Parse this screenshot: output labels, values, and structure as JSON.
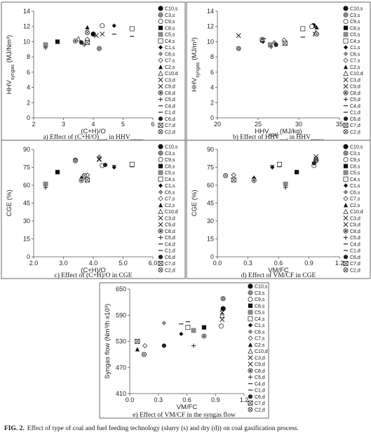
{
  "figure_caption": {
    "label": "FIG. 2.",
    "text": "Effect of type of coal and fuel feeding technology (slurry (s) and dry (d)) on coal gasification process."
  },
  "legend_entries": [
    "C10,s",
    "C3,s",
    "C9,s",
    "C8,s",
    "C5,s",
    "C4,s",
    "C1,s",
    "C6,s",
    "C7,s",
    "C2,s",
    "C10,d",
    "C3,d",
    "C9,d",
    "C8,d",
    "C5,d",
    "C4,d",
    "C1,d",
    "C6,d",
    "C7,d",
    "C2,d"
  ],
  "marker_styles": {
    "C10,s": "filled-circle",
    "C3,s": "grey-circle",
    "C9,s": "open-circle",
    "C8,s": "filled-square",
    "C5,s": "grey-square",
    "C4,s": "open-square",
    "C1,s": "filled-diamond",
    "C6,s": "grey-diamond",
    "C7,s": "open-diamond",
    "C2,s": "filled-triangle",
    "C10,d": "open-triangle",
    "C3,d": "x-mark",
    "C9,d": "x-mark",
    "C8,d": "circle-star",
    "C5,d": "plus",
    "C4,d": "dash",
    "C1,d": "dash",
    "C6,d": "filled-circle-small",
    "C7,d": "square-x",
    "C2,d": "circle-x"
  },
  "chart_data": [
    {
      "id": "a",
      "type": "scatter",
      "caption_html_parts": [
        "a) Effect of (C+H/O)",
        "coal",
        " in HHV",
        "syngas"
      ],
      "xlabel": "(C+H)/O",
      "ylabel_main": "HHV",
      "ylabel_sub": "syngas",
      "ylabel_tail": " (MJ/Nm³)",
      "xlim": [
        2,
        6
      ],
      "ylim": [
        0,
        14
      ],
      "xticks": [
        2,
        3,
        4,
        5,
        6
      ],
      "yticks": [
        0,
        2,
        4,
        6,
        8,
        10,
        12,
        14
      ],
      "xtick_labels": [
        "2",
        "3",
        "4",
        "5",
        "6"
      ],
      "ytick_labels": [
        "0",
        "2",
        "4",
        "6",
        "8",
        "10",
        "12",
        "14"
      ],
      "points": [
        {
          "s": "C10,s",
          "x": 4.0,
          "y": 11.0
        },
        {
          "s": "C3,s",
          "x": 4.2,
          "y": 9.1
        },
        {
          "s": "C9,s",
          "x": 4.3,
          "y": 12.1
        },
        {
          "s": "C8,s",
          "x": 2.8,
          "y": 10.0
        },
        {
          "s": "C5,s",
          "x": 2.4,
          "y": 9.6
        },
        {
          "s": "C4,s",
          "x": 5.3,
          "y": 11.7
        },
        {
          "s": "C1,s",
          "x": 4.7,
          "y": 12.1
        },
        {
          "s": "C6,s",
          "x": 3.7,
          "y": 9.6
        },
        {
          "s": "C7,s",
          "x": 3.8,
          "y": 10.3
        },
        {
          "s": "C2,s",
          "x": 3.8,
          "y": 11.9
        },
        {
          "s": "C10,d",
          "x": 3.5,
          "y": 10.4
        },
        {
          "s": "C3,d",
          "x": 4.3,
          "y": 11.0
        },
        {
          "s": "C9,d",
          "x": 4.1,
          "y": 10.8
        },
        {
          "s": "C8,d",
          "x": 3.4,
          "y": 10.1
        },
        {
          "s": "C5,d",
          "x": 2.4,
          "y": 9.2
        },
        {
          "s": "C4,d",
          "x": 5.3,
          "y": 10.7
        },
        {
          "s": "C1,d",
          "x": 4.7,
          "y": 11.0
        },
        {
          "s": "C6,d",
          "x": 3.6,
          "y": 9.9
        },
        {
          "s": "C7,d",
          "x": 3.8,
          "y": 9.9
        },
        {
          "s": "C2,d",
          "x": 3.8,
          "y": 11.2
        }
      ]
    },
    {
      "id": "b",
      "type": "scatter",
      "caption_html_parts": [
        "b) Effect of HHV",
        "coal",
        " in HHV",
        "syngas"
      ],
      "xlabel_main": "HHV",
      "xlabel_sub": "coal",
      "xlabel_tail": " (MJ/kg)",
      "ylabel_main": "HHV",
      "ylabel_sub": "syngas",
      "ylabel_tail": " (MJ/m³)",
      "xlim": [
        20,
        35
      ],
      "ylim": [
        0,
        14
      ],
      "xticks": [
        20,
        25,
        30,
        35
      ],
      "yticks": [
        0,
        2,
        4,
        6,
        8,
        10,
        12,
        14
      ],
      "xtick_labels": [
        "20",
        "25",
        "30",
        "35"
      ],
      "ytick_labels": [
        "0",
        "2",
        "4",
        "6",
        "8",
        "10",
        "12",
        "14"
      ],
      "points": [
        {
          "s": "C10,s",
          "x": 31.8,
          "y": 12.1
        },
        {
          "s": "C3,s",
          "x": 22.6,
          "y": 9.1
        },
        {
          "s": "C9,s",
          "x": 31.6,
          "y": 12.0
        },
        {
          "s": "C8,s",
          "x": 25.5,
          "y": 10.2
        },
        {
          "s": "C5,s",
          "x": 26.5,
          "y": 9.6
        },
        {
          "s": "C4,s",
          "x": 30.5,
          "y": 11.7
        },
        {
          "s": "C1,s",
          "x": 25.6,
          "y": 10.0
        },
        {
          "s": "C6,s",
          "x": 27.0,
          "y": 9.9
        },
        {
          "s": "C7,s",
          "x": 28.2,
          "y": 10.2
        },
        {
          "s": "C2,s",
          "x": 32.2,
          "y": 11.9
        },
        {
          "s": "C10,d",
          "x": 32.1,
          "y": 11.2
        },
        {
          "s": "C3,d",
          "x": 22.6,
          "y": 10.8
        },
        {
          "s": "C9,d",
          "x": 32.0,
          "y": 11.0
        },
        {
          "s": "C8,d",
          "x": 25.5,
          "y": 10.3
        },
        {
          "s": "C5,d",
          "x": 26.6,
          "y": 9.3
        },
        {
          "s": "C4,d",
          "x": 30.5,
          "y": 10.6
        },
        {
          "s": "C1,d",
          "x": 25.7,
          "y": 10.4
        },
        {
          "s": "C6,d",
          "x": 27.2,
          "y": 9.6
        },
        {
          "s": "C7,d",
          "x": 28.3,
          "y": 9.8
        },
        {
          "s": "C2,d",
          "x": 32.2,
          "y": 11.0
        }
      ]
    },
    {
      "id": "c",
      "type": "scatter",
      "caption": "c) Effect of (C+H)/O in CGE",
      "xlabel": "(C+H)/O",
      "ylabel": "CGE (%)",
      "xlim": [
        2,
        6
      ],
      "ylim": [
        0,
        90
      ],
      "xticks": [
        2,
        3,
        4,
        5,
        6
      ],
      "yticks": [
        0,
        15,
        30,
        45,
        60,
        75,
        90
      ],
      "xtick_labels": [
        "2.0",
        "3.0",
        "4.0",
        "5.0",
        "6.0"
      ],
      "ytick_labels": [
        "0",
        "15",
        "30",
        "45",
        "60",
        "75",
        "90"
      ],
      "points": [
        {
          "s": "C10,s",
          "x": 3.4,
          "y": 81.0
        },
        {
          "s": "C3,s",
          "x": 3.4,
          "y": 80.5
        },
        {
          "s": "C9,s",
          "x": 4.3,
          "y": 76.5
        },
        {
          "s": "C8,s",
          "x": 2.8,
          "y": 71.0
        },
        {
          "s": "C5,s",
          "x": 2.4,
          "y": 61.0
        },
        {
          "s": "C4,s",
          "x": 5.3,
          "y": 77.5
        },
        {
          "s": "C1,s",
          "x": 4.7,
          "y": 75.0
        },
        {
          "s": "C6,s",
          "x": 4.2,
          "y": 84.0
        },
        {
          "s": "C7,s",
          "x": 3.8,
          "y": 68.5
        },
        {
          "s": "C2,s",
          "x": 3.6,
          "y": 66.5
        },
        {
          "s": "C10,d",
          "x": 3.7,
          "y": 67.0
        },
        {
          "s": "C3,d",
          "x": 4.2,
          "y": 82.0
        },
        {
          "s": "C9,d",
          "x": 4.2,
          "y": 81.5
        },
        {
          "s": "C8,d",
          "x": 3.6,
          "y": 64.0
        },
        {
          "s": "C5,d",
          "x": 2.4,
          "y": 58.0
        },
        {
          "s": "C4,d",
          "x": 5.3,
          "y": 75.5
        },
        {
          "s": "C1,d",
          "x": 4.7,
          "y": 76.5
        },
        {
          "s": "C6,d",
          "x": 4.4,
          "y": 77.0
        },
        {
          "s": "C7,d",
          "x": 3.8,
          "y": 64.5
        },
        {
          "s": "C2,d",
          "x": 3.7,
          "y": 68.0
        }
      ]
    },
    {
      "id": "d",
      "type": "scatter",
      "caption": "d) Effect of VM/CF in CGE",
      "xlabel": "VM/FC",
      "ylabel": "CGE (%)",
      "xlim": [
        0,
        1.2
      ],
      "ylim": [
        0,
        90
      ],
      "xticks": [
        0,
        0.3,
        0.6,
        0.9,
        1.2
      ],
      "yticks": [
        0,
        15,
        30,
        45,
        60,
        75,
        90
      ],
      "xtick_labels": [
        "0.0",
        "0.3",
        "0.6",
        "0.9",
        "1.2"
      ],
      "ytick_labels": [
        "0",
        "15",
        "30",
        "45",
        "60",
        "75",
        "90"
      ],
      "points": [
        {
          "s": "C10,s",
          "x": 0.97,
          "y": 81.0
        },
        {
          "s": "C3,s",
          "x": 0.97,
          "y": 80.5
        },
        {
          "s": "C9,s",
          "x": 0.95,
          "y": 76.5
        },
        {
          "s": "C8,s",
          "x": 0.78,
          "y": 71.0
        },
        {
          "s": "C5,s",
          "x": 0.67,
          "y": 61.0
        },
        {
          "s": "C4,s",
          "x": 0.61,
          "y": 77.5
        },
        {
          "s": "C1,s",
          "x": 0.54,
          "y": 75.0
        },
        {
          "s": "C6,s",
          "x": 0.36,
          "y": 66.0
        },
        {
          "s": "C7,s",
          "x": 0.16,
          "y": 68.5
        },
        {
          "s": "C2,s",
          "x": 0.36,
          "y": 66.5
        },
        {
          "s": "C10,d",
          "x": 0.97,
          "y": 82.5
        },
        {
          "s": "C3,d",
          "x": 0.97,
          "y": 82.0
        },
        {
          "s": "C9,d",
          "x": 0.97,
          "y": 84.0
        },
        {
          "s": "C8,d",
          "x": 0.36,
          "y": 64.0
        },
        {
          "s": "C5,d",
          "x": 0.67,
          "y": 58.0
        },
        {
          "s": "C4,d",
          "x": 0.61,
          "y": 75.5
        },
        {
          "s": "C1,d",
          "x": 0.54,
          "y": 76.5
        },
        {
          "s": "C6,d",
          "x": 0.95,
          "y": 78.5
        },
        {
          "s": "C7,d",
          "x": 0.16,
          "y": 64.5
        },
        {
          "s": "C2,d",
          "x": 0.08,
          "y": 68.0
        }
      ]
    },
    {
      "id": "e",
      "type": "scatter",
      "caption": "e) Effect of VM/CF in the syngas flow",
      "xlabel": "VM/FC",
      "ylabel": "Syngas flow (Nm³/h x10³)",
      "xlim": [
        0,
        1.2
      ],
      "ylim": [
        410,
        650
      ],
      "xticks": [
        0,
        0.3,
        0.6,
        0.9,
        1.2
      ],
      "yticks": [
        410,
        470,
        530,
        590,
        650
      ],
      "xtick_labels": [
        "0.0",
        "0.3",
        "0.6",
        "0.9",
        "1.2"
      ],
      "ytick_labels": [
        "410",
        "470",
        "530",
        "590",
        "650"
      ],
      "points": [
        {
          "s": "C10,s",
          "x": 0.98,
          "y": 605
        },
        {
          "s": "C3,s",
          "x": 0.98,
          "y": 628
        },
        {
          "s": "C9,s",
          "x": 0.96,
          "y": 565
        },
        {
          "s": "C8,s",
          "x": 0.78,
          "y": 562
        },
        {
          "s": "C5,s",
          "x": 0.67,
          "y": 555
        },
        {
          "s": "C4,s",
          "x": 0.61,
          "y": 562
        },
        {
          "s": "C1,s",
          "x": 0.54,
          "y": 547
        },
        {
          "s": "C6,s",
          "x": 0.36,
          "y": 572
        },
        {
          "s": "C7,s",
          "x": 0.16,
          "y": 520
        },
        {
          "s": "C2,s",
          "x": 0.08,
          "y": 512
        },
        {
          "s": "C10,d",
          "x": 0.97,
          "y": 590
        },
        {
          "s": "C3,d",
          "x": 0.97,
          "y": 580
        },
        {
          "s": "C9,d",
          "x": 0.97,
          "y": 596
        },
        {
          "s": "C8,d",
          "x": 0.78,
          "y": 542
        },
        {
          "s": "C5,d",
          "x": 0.67,
          "y": 520
        },
        {
          "s": "C4,d",
          "x": 0.61,
          "y": 575
        },
        {
          "s": "C1,d",
          "x": 0.54,
          "y": 570
        },
        {
          "s": "C6,d",
          "x": 0.36,
          "y": 520
        },
        {
          "s": "C7,d",
          "x": 0.08,
          "y": 530
        },
        {
          "s": "C2,d",
          "x": 0.15,
          "y": 500
        }
      ]
    }
  ]
}
